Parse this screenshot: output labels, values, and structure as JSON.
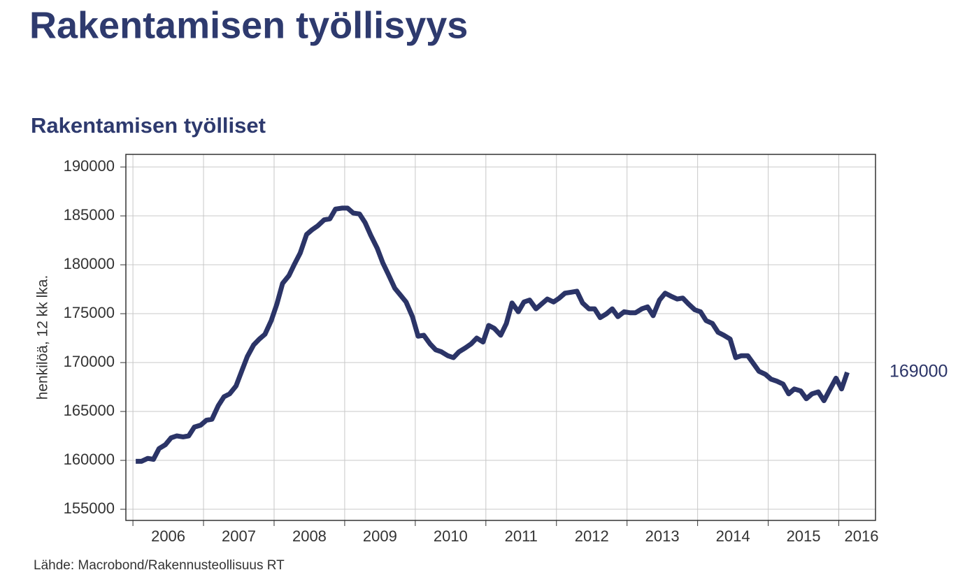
{
  "chart_data": {
    "type": "line",
    "title": "Rakentamisen työllisyys",
    "subtitle": "Rakentamisen työlliset",
    "ylabel": "henkilöä, 12 kk lka.",
    "source": "Lähde: Macrobond/Rakennusteollisuus RT",
    "end_label": 169000,
    "color": "#2b3467",
    "grid": true,
    "xlim": [
      2005.9,
      2016.52
    ],
    "xticks": [
      2006,
      2007,
      2008,
      2009,
      2010,
      2011,
      2012,
      2013,
      2014,
      2015,
      2016
    ],
    "ylim": [
      153860,
      191290
    ],
    "yticks": [
      155000,
      160000,
      165000,
      170000,
      175000,
      180000,
      185000,
      190000
    ],
    "x": [
      2006.04,
      2006.12,
      2006.21,
      2006.29,
      2006.37,
      2006.46,
      2006.54,
      2006.62,
      2006.71,
      2006.79,
      2006.87,
      2006.96,
      2007.04,
      2007.12,
      2007.21,
      2007.29,
      2007.37,
      2007.46,
      2007.54,
      2007.62,
      2007.71,
      2007.79,
      2007.87,
      2007.96,
      2008.04,
      2008.12,
      2008.21,
      2008.29,
      2008.37,
      2008.46,
      2008.54,
      2008.62,
      2008.71,
      2008.79,
      2008.87,
      2008.96,
      2009.04,
      2009.12,
      2009.21,
      2009.29,
      2009.37,
      2009.46,
      2009.54,
      2009.62,
      2009.71,
      2009.79,
      2009.87,
      2009.96,
      2010.04,
      2010.12,
      2010.21,
      2010.29,
      2010.37,
      2010.46,
      2010.54,
      2010.62,
      2010.71,
      2010.79,
      2010.87,
      2010.96,
      2011.04,
      2011.12,
      2011.21,
      2011.29,
      2011.37,
      2011.46,
      2011.54,
      2011.62,
      2011.71,
      2011.79,
      2011.87,
      2011.96,
      2012.04,
      2012.12,
      2012.21,
      2012.29,
      2012.37,
      2012.46,
      2012.54,
      2012.62,
      2012.71,
      2012.79,
      2012.87,
      2012.96,
      2013.04,
      2013.12,
      2013.21,
      2013.29,
      2013.37,
      2013.46,
      2013.54,
      2013.62,
      2013.71,
      2013.79,
      2013.87,
      2013.96,
      2014.04,
      2014.12,
      2014.21,
      2014.29,
      2014.37,
      2014.46,
      2014.54,
      2014.62,
      2014.71,
      2014.79,
      2014.87,
      2014.96,
      2015.04,
      2015.12,
      2015.21,
      2015.29,
      2015.37,
      2015.46,
      2015.54,
      2015.62,
      2015.71,
      2015.79,
      2015.87,
      2015.96,
      2016.04,
      2016.12
    ],
    "values": [
      159900,
      159900,
      160200,
      160100,
      161200,
      161600,
      162300,
      162500,
      162400,
      162500,
      163400,
      163600,
      164100,
      164200,
      165600,
      166500,
      166800,
      167600,
      169100,
      170600,
      171800,
      172400,
      172900,
      174300,
      176000,
      178100,
      178900,
      180100,
      181200,
      183100,
      183600,
      184000,
      184600,
      184700,
      185700,
      185800,
      185800,
      185300,
      185200,
      184300,
      183000,
      181700,
      180200,
      179000,
      177600,
      176900,
      176200,
      174700,
      172700,
      172800,
      171900,
      171300,
      171100,
      170700,
      170500,
      171100,
      171500,
      171900,
      172500,
      172100,
      173800,
      173500,
      172800,
      174000,
      176100,
      175200,
      176200,
      176400,
      175500,
      176000,
      176500,
      176200,
      176600,
      177100,
      177200,
      177300,
      176100,
      175500,
      175500,
      174600,
      175000,
      175500,
      174700,
      175200,
      175100,
      175100,
      175500,
      175700,
      174800,
      176400,
      177100,
      176800,
      176500,
      176600,
      176000,
      175400,
      175200,
      174300,
      174000,
      173100,
      172800,
      172400,
      170500,
      170700,
      170700,
      169900,
      169100,
      168800,
      168300,
      168100,
      167800,
      166800,
      167300,
      167100,
      166300,
      166800,
      167000,
      166100,
      167200,
      168400,
      167300,
      169000
    ]
  }
}
